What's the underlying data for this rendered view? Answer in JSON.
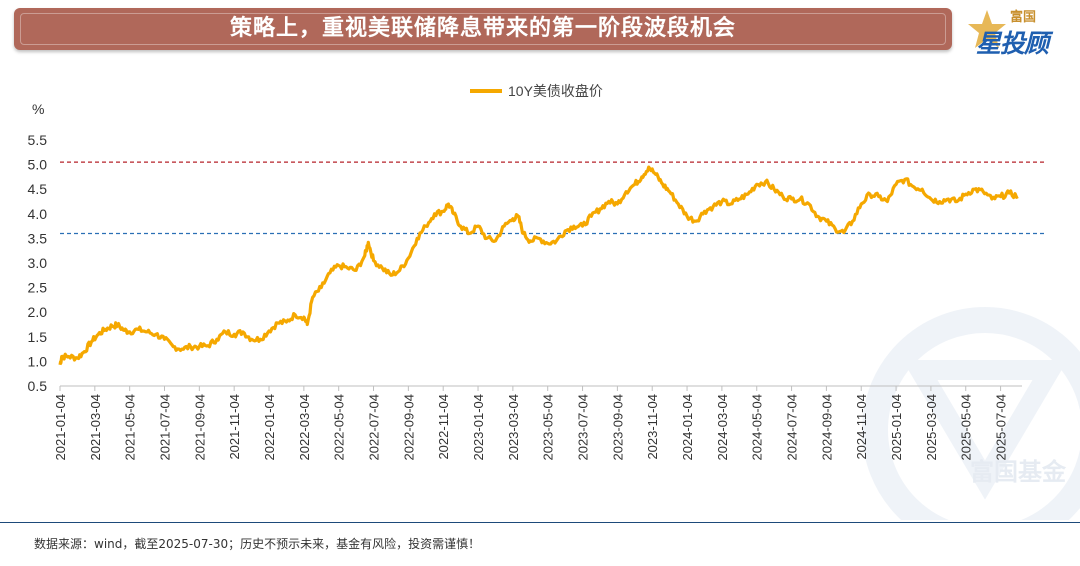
{
  "header": {
    "title": "策略上，重视美联储降息带来的第一阶段波段机会",
    "logo_top": "富国",
    "logo_main": "星投顾"
  },
  "watermark": "富国基金",
  "footer": {
    "text": "数据来源：wind，截至2025-07-30；历史不预示未来，基金有风险，投资需谨慎！"
  },
  "colors": {
    "line": "#f5a800",
    "upper_ref": "#b5222a",
    "lower_ref": "#2a6fb5",
    "banner": "#b0685a"
  },
  "chart_data": {
    "type": "line",
    "title": "",
    "ylabel": "%",
    "ylim": [
      0.5,
      5.5
    ],
    "yticks": [
      "0.5",
      "1.0",
      "1.5",
      "2.0",
      "2.5",
      "3.0",
      "3.5",
      "4.0",
      "4.5",
      "5.0",
      "5.5"
    ],
    "legend": "10Y美债收盘价",
    "legend_position": "top-center",
    "x_range_months": [
      0,
      55
    ],
    "xticks": [
      {
        "label": "2021-01-04",
        "m": 0
      },
      {
        "label": "2021-03-04",
        "m": 2
      },
      {
        "label": "2021-05-04",
        "m": 4
      },
      {
        "label": "2021-07-04",
        "m": 6
      },
      {
        "label": "2021-09-04",
        "m": 8
      },
      {
        "label": "2021-11-04",
        "m": 10
      },
      {
        "label": "2022-01-04",
        "m": 12
      },
      {
        "label": "2022-03-04",
        "m": 14
      },
      {
        "label": "2022-05-04",
        "m": 16
      },
      {
        "label": "2022-07-04",
        "m": 18
      },
      {
        "label": "2022-09-04",
        "m": 20
      },
      {
        "label": "2022-11-04",
        "m": 22
      },
      {
        "label": "2023-01-04",
        "m": 24
      },
      {
        "label": "2023-03-04",
        "m": 26
      },
      {
        "label": "2023-05-04",
        "m": 28
      },
      {
        "label": "2023-07-04",
        "m": 30
      },
      {
        "label": "2023-09-04",
        "m": 32
      },
      {
        "label": "2023-11-04",
        "m": 34
      },
      {
        "label": "2024-01-04",
        "m": 36
      },
      {
        "label": "2024-03-04",
        "m": 38
      },
      {
        "label": "2024-05-04",
        "m": 40
      },
      {
        "label": "2024-07-04",
        "m": 42
      },
      {
        "label": "2024-09-04",
        "m": 44
      },
      {
        "label": "2024-11-04",
        "m": 46
      },
      {
        "label": "2025-01-04",
        "m": 48
      },
      {
        "label": "2025-03-04",
        "m": 50
      },
      {
        "label": "2025-05-04",
        "m": 52
      },
      {
        "label": "2025-07-04",
        "m": 54
      }
    ],
    "reference_lines": [
      {
        "name": "upper",
        "value": 5.05,
        "style": "dashed"
      },
      {
        "name": "lower",
        "value": 3.6,
        "style": "dashed"
      }
    ],
    "series": [
      {
        "name": "10Y美债收盘价",
        "points": [
          [
            0,
            0.93
          ],
          [
            0.1,
            1.1
          ],
          [
            0.5,
            1.1
          ],
          [
            1,
            1.07
          ],
          [
            1.4,
            1.2
          ],
          [
            1.8,
            1.4
          ],
          [
            2.2,
            1.55
          ],
          [
            2.6,
            1.65
          ],
          [
            3,
            1.72
          ],
          [
            3.3,
            1.74
          ],
          [
            3.7,
            1.63
          ],
          [
            4,
            1.6
          ],
          [
            4.5,
            1.65
          ],
          [
            5,
            1.6
          ],
          [
            5.5,
            1.55
          ],
          [
            6,
            1.45
          ],
          [
            6.5,
            1.3
          ],
          [
            7,
            1.25
          ],
          [
            7.5,
            1.3
          ],
          [
            8,
            1.3
          ],
          [
            8.5,
            1.32
          ],
          [
            9,
            1.45
          ],
          [
            9.5,
            1.6
          ],
          [
            10,
            1.55
          ],
          [
            10.5,
            1.6
          ],
          [
            11,
            1.45
          ],
          [
            11.5,
            1.45
          ],
          [
            12,
            1.62
          ],
          [
            12.5,
            1.78
          ],
          [
            13,
            1.8
          ],
          [
            13.5,
            1.95
          ],
          [
            14,
            1.9
          ],
          [
            14.2,
            1.75
          ],
          [
            14.5,
            2.3
          ],
          [
            15,
            2.5
          ],
          [
            15.5,
            2.8
          ],
          [
            16,
            2.95
          ],
          [
            16.5,
            2.9
          ],
          [
            17,
            2.85
          ],
          [
            17.5,
            3.15
          ],
          [
            17.7,
            3.42
          ],
          [
            18,
            3.05
          ],
          [
            18.5,
            2.9
          ],
          [
            19,
            2.75
          ],
          [
            19.5,
            2.85
          ],
          [
            20,
            3.1
          ],
          [
            20.5,
            3.5
          ],
          [
            21,
            3.75
          ],
          [
            21.5,
            4.0
          ],
          [
            22,
            4.05
          ],
          [
            22.3,
            4.2
          ],
          [
            22.6,
            4.0
          ],
          [
            23,
            3.75
          ],
          [
            23.5,
            3.6
          ],
          [
            24,
            3.75
          ],
          [
            24.5,
            3.5
          ],
          [
            25,
            3.45
          ],
          [
            25.5,
            3.75
          ],
          [
            26,
            3.9
          ],
          [
            26.3,
            3.95
          ],
          [
            26.6,
            3.6
          ],
          [
            27,
            3.45
          ],
          [
            27.5,
            3.5
          ],
          [
            28,
            3.4
          ],
          [
            28.5,
            3.45
          ],
          [
            29,
            3.65
          ],
          [
            29.5,
            3.75
          ],
          [
            30,
            3.75
          ],
          [
            30.5,
            3.95
          ],
          [
            31,
            4.1
          ],
          [
            31.5,
            4.25
          ],
          [
            32,
            4.2
          ],
          [
            32.5,
            4.45
          ],
          [
            33,
            4.6
          ],
          [
            33.4,
            4.75
          ],
          [
            33.8,
            4.95
          ],
          [
            34.2,
            4.8
          ],
          [
            34.6,
            4.6
          ],
          [
            35,
            4.45
          ],
          [
            35.5,
            4.2
          ],
          [
            36,
            3.95
          ],
          [
            36.5,
            3.85
          ],
          [
            37,
            4.05
          ],
          [
            37.5,
            4.15
          ],
          [
            38,
            4.25
          ],
          [
            38.5,
            4.2
          ],
          [
            39,
            4.3
          ],
          [
            39.5,
            4.4
          ],
          [
            40,
            4.6
          ],
          [
            40.5,
            4.65
          ],
          [
            41,
            4.5
          ],
          [
            41.5,
            4.35
          ],
          [
            42,
            4.3
          ],
          [
            42.5,
            4.3
          ],
          [
            43,
            4.2
          ],
          [
            43.5,
            3.95
          ],
          [
            44,
            3.85
          ],
          [
            44.5,
            3.7
          ],
          [
            45,
            3.62
          ],
          [
            45.5,
            3.85
          ],
          [
            46,
            4.2
          ],
          [
            46.5,
            4.4
          ],
          [
            47,
            4.35
          ],
          [
            47.5,
            4.25
          ],
          [
            48,
            4.6
          ],
          [
            48.5,
            4.7
          ],
          [
            49,
            4.55
          ],
          [
            49.5,
            4.5
          ],
          [
            50,
            4.3
          ],
          [
            50.5,
            4.25
          ],
          [
            51,
            4.3
          ],
          [
            51.5,
            4.25
          ],
          [
            52,
            4.4
          ],
          [
            52.5,
            4.5
          ],
          [
            53,
            4.45
          ],
          [
            53.5,
            4.3
          ],
          [
            54,
            4.35
          ],
          [
            54.5,
            4.42
          ],
          [
            55,
            4.35
          ]
        ]
      }
    ]
  }
}
